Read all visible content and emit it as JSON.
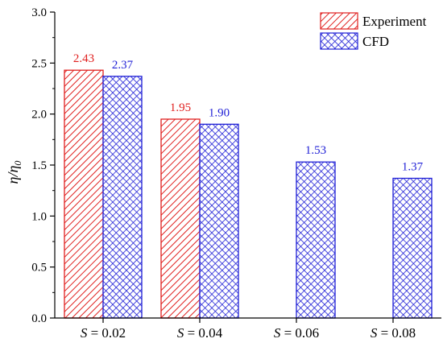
{
  "chart_data": {
    "type": "bar",
    "categories": [
      "S = 0.02",
      "S = 0.04",
      "S = 0.06",
      "S = 0.08"
    ],
    "category_parts": [
      {
        "var": "S",
        "rest": " = 0.02"
      },
      {
        "var": "S",
        "rest": " = 0.04"
      },
      {
        "var": "S",
        "rest": " = 0.06"
      },
      {
        "var": "S",
        "rest": " = 0.08"
      }
    ],
    "series": [
      {
        "name": "Experiment",
        "values": [
          2.43,
          1.95,
          null,
          null
        ],
        "labels": [
          "2.43",
          "1.95",
          "",
          ""
        ],
        "color": "#e0201f",
        "pattern": "diagonal-hatch"
      },
      {
        "name": "CFD",
        "values": [
          2.37,
          1.9,
          1.53,
          1.37
        ],
        "labels": [
          "2.37",
          "1.90",
          "1.53",
          "1.37"
        ],
        "color": "#1f1fd6",
        "pattern": "crosshatch"
      }
    ],
    "ylabel": {
      "main": "η/η",
      "sub": "0"
    },
    "ylim": [
      0,
      3.0
    ],
    "yticks": [
      "0.0",
      "0.5",
      "1.0",
      "1.5",
      "2.0",
      "2.5",
      "3.0"
    ],
    "legend_position": "top-right",
    "grid": false
  }
}
